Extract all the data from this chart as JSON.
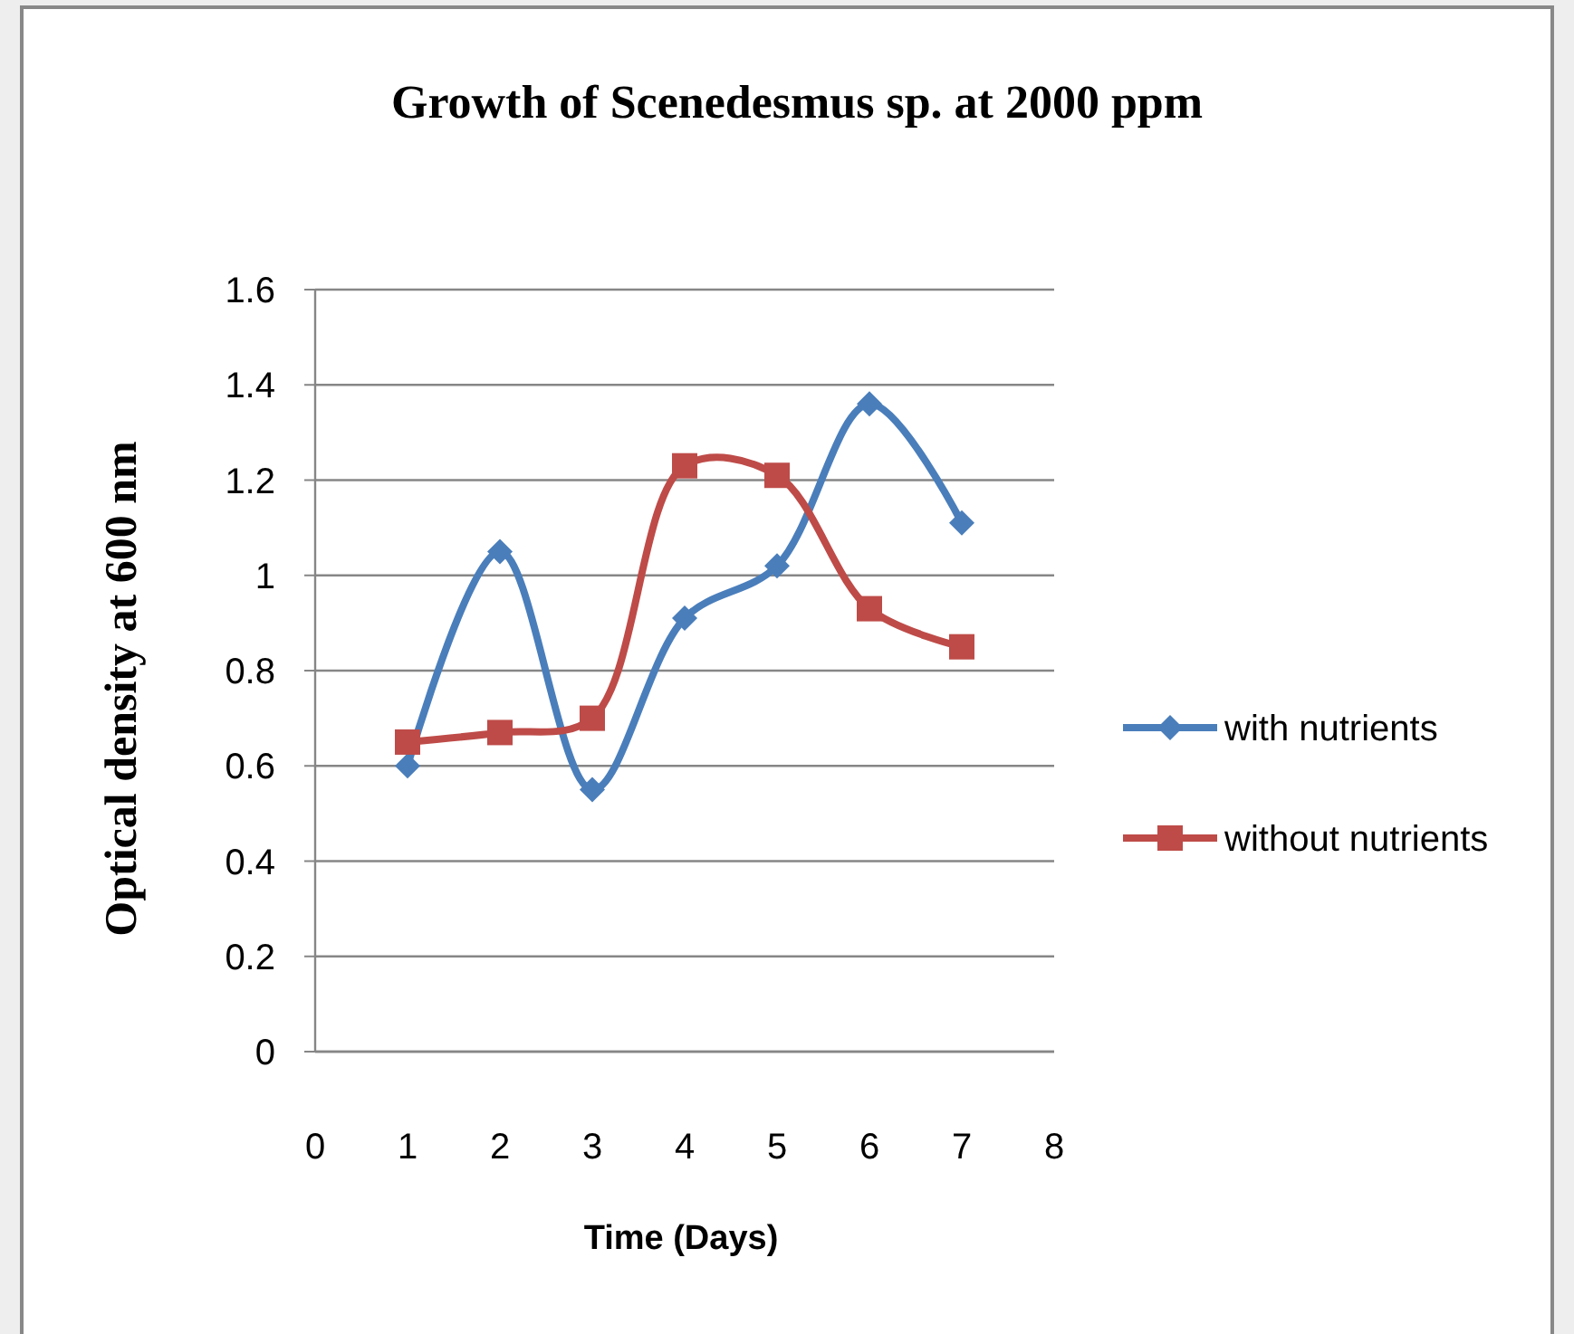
{
  "chart_data": {
    "type": "line",
    "title": "Growth of Scenedesmus sp. at 2000 ppm",
    "xlabel": "Time (Days)",
    "ylabel": "Optical density at 600 nm",
    "x": [
      1,
      2,
      3,
      4,
      5,
      6,
      7
    ],
    "series": [
      {
        "name": "with nutrients",
        "color": "#4a7ebb",
        "marker": "diamond",
        "values": [
          0.6,
          1.05,
          0.55,
          0.91,
          1.02,
          1.36,
          1.11
        ]
      },
      {
        "name": "without nutrients",
        "color": "#be4b48",
        "marker": "square",
        "values": [
          0.65,
          0.67,
          0.7,
          1.23,
          1.21,
          0.93,
          0.85
        ]
      }
    ],
    "xlim": [
      0,
      8
    ],
    "xticks": [
      0,
      1,
      2,
      3,
      4,
      5,
      6,
      7,
      8
    ],
    "ylim": [
      0,
      1.6
    ],
    "yticks": [
      0,
      0.2,
      0.4,
      0.6,
      0.8,
      1,
      1.2,
      1.4,
      1.6
    ],
    "grid": "y",
    "legend": "right"
  }
}
